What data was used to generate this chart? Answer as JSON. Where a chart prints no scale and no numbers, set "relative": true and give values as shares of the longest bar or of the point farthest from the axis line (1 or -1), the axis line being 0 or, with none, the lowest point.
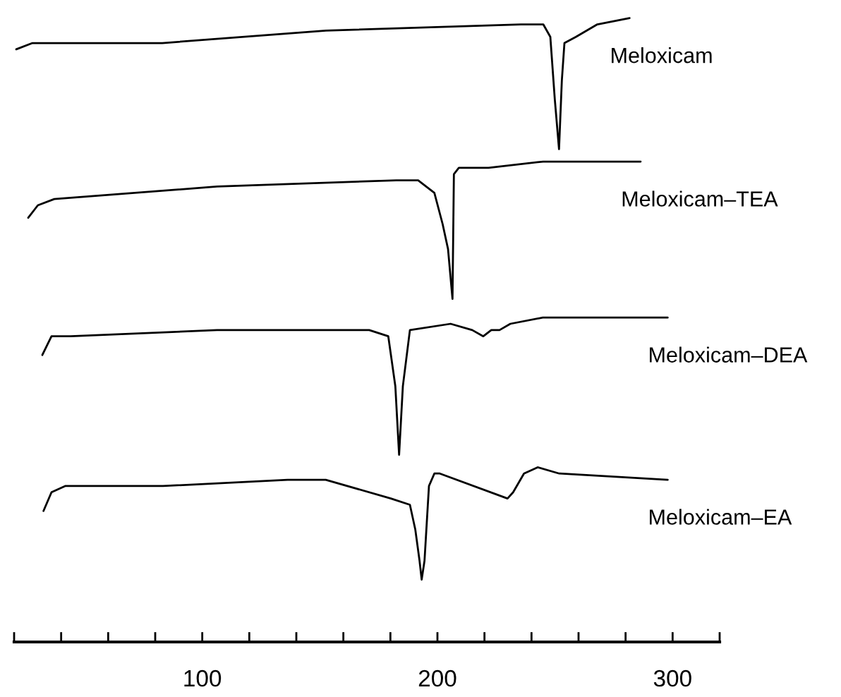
{
  "chart_data": {
    "type": "line",
    "relative": true,
    "xlim": [
      20,
      320
    ],
    "xticks": [
      {
        "value": 20,
        "label": null
      },
      {
        "value": 40,
        "label": null
      },
      {
        "value": 60,
        "label": null
      },
      {
        "value": 80,
        "label": null
      },
      100,
      {
        "value": 120,
        "label": null
      },
      {
        "value": 140,
        "label": null
      },
      {
        "value": 160,
        "label": null
      },
      {
        "value": 180,
        "label": null
      },
      200,
      {
        "value": 220,
        "label": null
      },
      {
        "value": 240,
        "label": null
      },
      {
        "value": 260,
        "label": null
      },
      {
        "value": 280,
        "label": null
      },
      300,
      {
        "value": 320,
        "label": null
      }
    ],
    "tick_labels": "x",
    "grid": false,
    "legend": false,
    "marker": "none",
    "line_style": "solid",
    "series": [
      {
        "name": "Meloxicam",
        "color": "#000000",
        "x": [
          20.9,
          27.8,
          83,
          152.6,
          235.5,
          245,
          248,
          249.9,
          251.7,
          252.9,
          254,
          258.9,
          268,
          281.7
        ],
        "values": [
          0.95,
          0.96,
          0.96,
          0.98,
          0.99,
          0.99,
          0.97,
          0.87,
          0.79,
          0.9,
          0.96,
          0.97,
          0.99,
          1.0
        ]
      },
      {
        "name": "Meloxicam–TEA",
        "color": "#000000",
        "x": [
          26,
          30.1,
          37.1,
          106.3,
          182.5,
          191.8,
          198.7,
          202.2,
          204.5,
          206.4,
          207,
          209.1,
          221.7,
          244.9,
          254.1,
          267.9,
          273.7,
          286.4
        ],
        "values": [
          0.68,
          0.7,
          0.71,
          0.73,
          0.74,
          0.74,
          0.72,
          0.67,
          0.63,
          0.55,
          0.75,
          0.76,
          0.76,
          0.77,
          0.77,
          0.77,
          0.77,
          0.77
        ]
      },
      {
        "name": "Meloxicam–DEA",
        "color": "#000000",
        "x": [
          32,
          35.9,
          44,
          106.3,
          171,
          179.1,
          182.1,
          183.7,
          185.3,
          188.3,
          205.6,
          214.8,
          219.5,
          222.9,
          226.4,
          231,
          244.8,
          297.9
        ],
        "values": [
          0.46,
          0.49,
          0.49,
          0.5,
          0.5,
          0.49,
          0.41,
          0.3,
          0.41,
          0.5,
          0.51,
          0.5,
          0.49,
          0.5,
          0.5,
          0.51,
          0.52,
          0.52
        ]
      },
      {
        "name": "Meloxicam–EA",
        "color": "#000000",
        "x": [
          32.5,
          35.9,
          41.7,
          83.3,
          136.3,
          152.5,
          180.2,
          188.3,
          190.6,
          192.4,
          193.3,
          194.5,
          196.4,
          198.7,
          201,
          229.8,
          232.2,
          236.8,
          242.6,
          251.8,
          297.9
        ],
        "values": [
          0.21,
          0.24,
          0.25,
          0.25,
          0.26,
          0.26,
          0.23,
          0.22,
          0.18,
          0.13,
          0.1,
          0.13,
          0.25,
          0.27,
          0.27,
          0.23,
          0.24,
          0.27,
          0.28,
          0.27,
          0.26
        ]
      }
    ]
  }
}
